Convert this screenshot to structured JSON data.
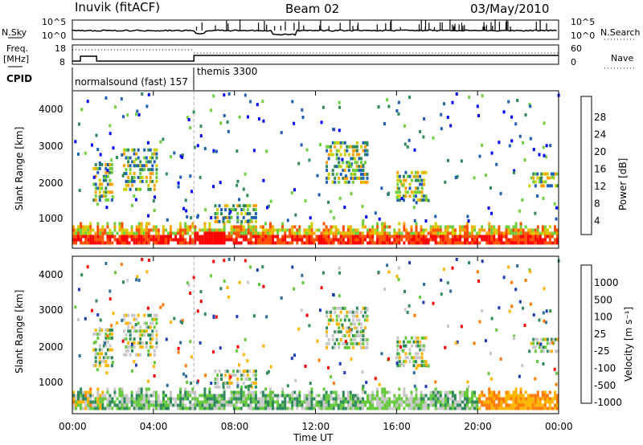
{
  "header": {
    "station": "Inuvik  (fitACF)",
    "beam": "Beam 02",
    "date": "03/May/2010"
  },
  "noise_panel": {
    "left_label": "N.Sky",
    "right_label": "N.Search",
    "left_ticks": [
      "10^5",
      "10^0"
    ],
    "right_ticks": [
      "10^5",
      "10^0"
    ]
  },
  "freq_panel": {
    "left_label_line1": "Freq.",
    "left_label_line2": "[MHz]",
    "right_label": "Nave",
    "left_ticks": [
      "18",
      "8"
    ],
    "right_ticks": [
      "60",
      "0"
    ]
  },
  "cpid": {
    "label": "CPID",
    "mode1": "normalsound (fast) 157",
    "mode2": "themis 3300"
  },
  "power_panel": {
    "ylabel": "Slant Range [km]",
    "yticks": [
      "4000",
      "3000",
      "2000",
      "1000"
    ],
    "colorbar_label": "Power [dB]",
    "colorbar_ticks": [
      "28",
      "24",
      "20",
      "16",
      "12",
      "8",
      "4"
    ],
    "colors": [
      "#0000ff",
      "#1f5fb4",
      "#2f8a5a",
      "#6fce3e",
      "#d0d000",
      "#ffa000",
      "#ff5000",
      "#ff0000"
    ]
  },
  "velocity_panel": {
    "ylabel": "Slant Range [km]",
    "yticks": [
      "4000",
      "3000",
      "2000",
      "1000"
    ],
    "colorbar_label": "Velocity [m s⁻¹]",
    "colorbar_ticks": [
      "1000",
      "500",
      "100",
      "25",
      "-25",
      "-100",
      "-500",
      "-1000"
    ],
    "colors": [
      "#1c3cb4",
      "#2d6e9c",
      "#2f8a5a",
      "#66c83c",
      "#c8c8c8",
      "#ffb400",
      "#ff7800",
      "#ff0000"
    ]
  },
  "xaxis": {
    "label": "Time UT",
    "ticks": [
      "00:00",
      "04:00",
      "08:00",
      "12:00",
      "16:00",
      "20:00",
      "00:00"
    ]
  },
  "chart_data": {
    "type": "heatmap",
    "title": "Inuvik  (fitACF)  Beam 02  03/May/2010",
    "xlabel": "Time UT",
    "ylabel": "Slant Range [km]",
    "x_range_hours": [
      0,
      24
    ],
    "y_range_km": [
      200,
      4600
    ],
    "mode_change_hour": 6,
    "power_colorbar_db": [
      4,
      8,
      12,
      16,
      20,
      24,
      28
    ],
    "velocity_colorbar_ms": [
      1000,
      500,
      100,
      25,
      -25,
      -100,
      -500,
      -1000
    ],
    "dense_echo_band_km": [
      300,
      900
    ],
    "scatter_patches": [
      {
        "hour_start": 1.0,
        "hour_end": 2.0,
        "range_start": 1500,
        "range_end": 2500
      },
      {
        "hour_start": 2.5,
        "hour_end": 4.2,
        "range_start": 1800,
        "range_end": 3000
      },
      {
        "hour_start": 7.0,
        "hour_end": 9.0,
        "range_start": 900,
        "range_end": 1400
      },
      {
        "hour_start": 12.5,
        "hour_end": 14.5,
        "range_start": 2000,
        "range_end": 3200
      },
      {
        "hour_start": 16.0,
        "hour_end": 17.5,
        "range_start": 1500,
        "range_end": 2300
      },
      {
        "hour_start": 22.5,
        "hour_end": 24.0,
        "range_start": 1900,
        "range_end": 2300
      }
    ]
  }
}
